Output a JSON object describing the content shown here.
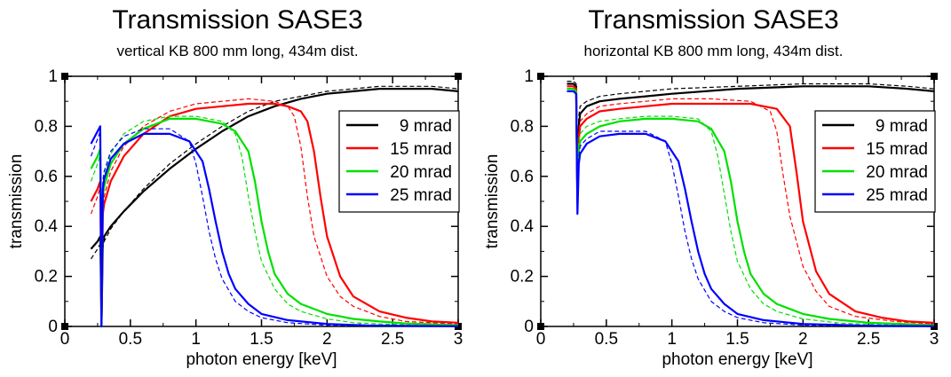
{
  "chart_data": [
    {
      "type": "line",
      "title": "Transmission SASE3",
      "subtitle": "vertical KB 800 mm long, 434m dist.",
      "xlabel": "photon energy [keV]",
      "ylabel": "transmission",
      "xlim": [
        0,
        3
      ],
      "ylim": [
        0,
        1
      ],
      "xticks": [
        "0",
        "0.5",
        "1",
        "1.5",
        "2",
        "2.5",
        "3"
      ],
      "yticks": [
        "0",
        "0.2",
        "0.4",
        "0.6",
        "0.8",
        "1"
      ],
      "grid": false,
      "legend_position": "top-right",
      "series": [
        {
          "name": "9 mrad",
          "color": "#000000",
          "solid": {
            "x": [
              0.2,
              0.25,
              0.27,
              0.28,
              0.29,
              0.3,
              0.35,
              0.45,
              0.6,
              0.8,
              1.0,
              1.2,
              1.4,
              1.6,
              1.8,
              2.0,
              2.2,
              2.4,
              2.6,
              2.8,
              3.0
            ],
            "y": [
              0.31,
              0.34,
              0.36,
              0.0,
              0.33,
              0.36,
              0.4,
              0.46,
              0.54,
              0.63,
              0.71,
              0.78,
              0.84,
              0.88,
              0.91,
              0.93,
              0.94,
              0.95,
              0.95,
              0.95,
              0.94
            ]
          },
          "dashed": {
            "x": [
              0.2,
              0.25,
              0.27,
              0.28,
              0.29,
              0.3,
              0.35,
              0.45,
              0.6,
              0.8,
              1.0,
              1.2,
              1.4,
              1.6,
              1.8,
              2.0,
              2.2,
              2.4,
              2.6,
              2.8,
              3.0
            ],
            "y": [
              0.27,
              0.31,
              0.33,
              0.0,
              0.31,
              0.34,
              0.39,
              0.46,
              0.55,
              0.65,
              0.73,
              0.8,
              0.86,
              0.9,
              0.92,
              0.94,
              0.95,
              0.96,
              0.96,
              0.96,
              0.95
            ]
          }
        },
        {
          "name": "15 mrad",
          "color": "#ff0000",
          "solid": {
            "x": [
              0.2,
              0.25,
              0.27,
              0.28,
              0.29,
              0.3,
              0.35,
              0.45,
              0.6,
              0.8,
              1.0,
              1.2,
              1.4,
              1.6,
              1.7,
              1.8,
              1.85,
              1.9,
              1.95,
              2.0,
              2.1,
              2.2,
              2.4,
              2.6,
              2.8,
              3.0
            ],
            "y": [
              0.5,
              0.55,
              0.58,
              0.0,
              0.45,
              0.49,
              0.58,
              0.68,
              0.77,
              0.84,
              0.87,
              0.88,
              0.89,
              0.89,
              0.88,
              0.86,
              0.82,
              0.7,
              0.52,
              0.36,
              0.2,
              0.12,
              0.06,
              0.035,
              0.02,
              0.015
            ]
          },
          "dashed": {
            "x": [
              0.2,
              0.25,
              0.27,
              0.28,
              0.29,
              0.3,
              0.35,
              0.45,
              0.6,
              0.8,
              1.0,
              1.2,
              1.4,
              1.6,
              1.7,
              1.75,
              1.8,
              1.85,
              1.9,
              2.0,
              2.1,
              2.2,
              2.4,
              2.6,
              2.8,
              3.0
            ],
            "y": [
              0.45,
              0.52,
              0.56,
              0.0,
              0.47,
              0.52,
              0.62,
              0.72,
              0.8,
              0.86,
              0.89,
              0.9,
              0.91,
              0.9,
              0.88,
              0.84,
              0.72,
              0.52,
              0.36,
              0.2,
              0.12,
              0.08,
              0.04,
              0.02,
              0.015,
              0.01
            ]
          }
        },
        {
          "name": "20 mrad",
          "color": "#00e000",
          "solid": {
            "x": [
              0.2,
              0.25,
              0.27,
              0.28,
              0.29,
              0.3,
              0.35,
              0.45,
              0.6,
              0.8,
              1.0,
              1.2,
              1.3,
              1.4,
              1.45,
              1.5,
              1.55,
              1.6,
              1.7,
              1.8,
              2.0,
              2.2,
              2.4,
              2.6,
              3.0
            ],
            "y": [
              0.63,
              0.68,
              0.71,
              0.0,
              0.52,
              0.56,
              0.65,
              0.73,
              0.79,
              0.83,
              0.83,
              0.81,
              0.78,
              0.7,
              0.58,
              0.42,
              0.3,
              0.21,
              0.13,
              0.09,
              0.05,
              0.03,
              0.02,
              0.012,
              0.005
            ]
          },
          "dashed": {
            "x": [
              0.2,
              0.25,
              0.27,
              0.28,
              0.29,
              0.3,
              0.35,
              0.45,
              0.6,
              0.8,
              1.0,
              1.2,
              1.3,
              1.35,
              1.4,
              1.45,
              1.5,
              1.6,
              1.7,
              1.8,
              2.0,
              2.2,
              2.4,
              3.0
            ],
            "y": [
              0.58,
              0.65,
              0.69,
              0.0,
              0.55,
              0.6,
              0.69,
              0.77,
              0.82,
              0.84,
              0.84,
              0.82,
              0.77,
              0.68,
              0.52,
              0.38,
              0.26,
              0.15,
              0.09,
              0.06,
              0.03,
              0.015,
              0.01,
              0.003
            ]
          }
        },
        {
          "name": "25 mrad",
          "color": "#0000ff",
          "solid": {
            "x": [
              0.2,
              0.25,
              0.27,
              0.28,
              0.29,
              0.3,
              0.35,
              0.45,
              0.6,
              0.8,
              0.95,
              1.05,
              1.1,
              1.15,
              1.2,
              1.25,
              1.3,
              1.4,
              1.5,
              1.7,
              2.0,
              2.3,
              2.6,
              3.0
            ],
            "y": [
              0.73,
              0.78,
              0.8,
              0.0,
              0.55,
              0.59,
              0.67,
              0.73,
              0.77,
              0.77,
              0.74,
              0.66,
              0.55,
              0.42,
              0.3,
              0.21,
              0.15,
              0.09,
              0.05,
              0.025,
              0.01,
              0.004,
              0.002,
              0.001
            ]
          },
          "dashed": {
            "x": [
              0.2,
              0.25,
              0.27,
              0.28,
              0.29,
              0.3,
              0.35,
              0.45,
              0.6,
              0.8,
              0.95,
              1.0,
              1.05,
              1.1,
              1.15,
              1.2,
              1.3,
              1.4,
              1.5,
              1.7,
              2.0,
              2.5,
              3.0
            ],
            "y": [
              0.68,
              0.75,
              0.78,
              0.0,
              0.58,
              0.62,
              0.7,
              0.76,
              0.79,
              0.79,
              0.74,
              0.65,
              0.52,
              0.38,
              0.27,
              0.19,
              0.1,
              0.06,
              0.035,
              0.015,
              0.005,
              0.002,
              0.001
            ]
          }
        }
      ]
    },
    {
      "type": "line",
      "title": "Transmission SASE3",
      "subtitle": "horizontal KB 800 mm long, 434m dist.",
      "xlabel": "photon energy [keV]",
      "ylabel": "transmission",
      "xlim": [
        0,
        3
      ],
      "ylim": [
        0,
        1
      ],
      "xticks": [
        "0",
        "0.5",
        "1",
        "1.5",
        "2",
        "2.5",
        "3"
      ],
      "yticks": [
        "0",
        "0.2",
        "0.4",
        "0.6",
        "0.8",
        "1"
      ],
      "grid": false,
      "legend_position": "top-right",
      "series": [
        {
          "name": "9 mrad",
          "color": "#000000",
          "solid": {
            "x": [
              0.2,
              0.25,
              0.27,
              0.28,
              0.29,
              0.3,
              0.35,
              0.45,
              0.6,
              0.8,
              1.0,
              1.5,
              2.0,
              2.5,
              2.8,
              3.0
            ],
            "y": [
              0.97,
              0.97,
              0.96,
              0.52,
              0.8,
              0.85,
              0.88,
              0.9,
              0.91,
              0.92,
              0.93,
              0.95,
              0.96,
              0.96,
              0.95,
              0.94
            ]
          },
          "dashed": {
            "x": [
              0.2,
              0.25,
              0.27,
              0.28,
              0.29,
              0.3,
              0.35,
              0.45,
              0.6,
              0.8,
              1.0,
              1.5,
              2.0,
              2.5,
              2.8,
              3.0
            ],
            "y": [
              0.98,
              0.98,
              0.97,
              0.6,
              0.84,
              0.88,
              0.9,
              0.92,
              0.93,
              0.94,
              0.95,
              0.96,
              0.97,
              0.97,
              0.96,
              0.95
            ]
          }
        },
        {
          "name": "15 mrad",
          "color": "#ff0000",
          "solid": {
            "x": [
              0.2,
              0.25,
              0.27,
              0.28,
              0.29,
              0.3,
              0.35,
              0.45,
              0.6,
              0.8,
              1.0,
              1.3,
              1.6,
              1.8,
              1.9,
              1.95,
              2.0,
              2.1,
              2.2,
              2.4,
              2.6,
              2.8,
              3.0
            ],
            "y": [
              0.96,
              0.96,
              0.95,
              0.5,
              0.75,
              0.8,
              0.83,
              0.86,
              0.87,
              0.88,
              0.89,
              0.89,
              0.89,
              0.87,
              0.8,
              0.62,
              0.42,
              0.22,
              0.13,
              0.06,
              0.035,
              0.02,
              0.015
            ]
          },
          "dashed": {
            "x": [
              0.2,
              0.25,
              0.27,
              0.28,
              0.29,
              0.3,
              0.35,
              0.45,
              0.6,
              0.8,
              1.0,
              1.3,
              1.6,
              1.75,
              1.8,
              1.85,
              1.9,
              2.0,
              2.1,
              2.2,
              2.4,
              2.7,
              3.0
            ],
            "y": [
              0.96,
              0.96,
              0.95,
              0.55,
              0.78,
              0.82,
              0.85,
              0.88,
              0.89,
              0.9,
              0.91,
              0.91,
              0.9,
              0.86,
              0.78,
              0.6,
              0.44,
              0.24,
              0.14,
              0.08,
              0.04,
              0.02,
              0.01
            ]
          }
        },
        {
          "name": "20 mrad",
          "color": "#00e000",
          "solid": {
            "x": [
              0.2,
              0.25,
              0.27,
              0.28,
              0.29,
              0.3,
              0.35,
              0.45,
              0.6,
              0.8,
              1.0,
              1.2,
              1.3,
              1.4,
              1.45,
              1.5,
              1.55,
              1.6,
              1.7,
              1.8,
              2.0,
              2.2,
              2.5,
              3.0
            ],
            "y": [
              0.95,
              0.95,
              0.94,
              0.5,
              0.7,
              0.74,
              0.77,
              0.8,
              0.82,
              0.83,
              0.83,
              0.82,
              0.79,
              0.7,
              0.58,
              0.42,
              0.3,
              0.21,
              0.13,
              0.09,
              0.05,
              0.03,
              0.015,
              0.005
            ]
          },
          "dashed": {
            "x": [
              0.2,
              0.25,
              0.27,
              0.28,
              0.29,
              0.3,
              0.35,
              0.45,
              0.6,
              0.8,
              1.0,
              1.2,
              1.3,
              1.35,
              1.4,
              1.45,
              1.5,
              1.6,
              1.7,
              1.8,
              2.0,
              2.3,
              3.0
            ],
            "y": [
              0.95,
              0.95,
              0.94,
              0.55,
              0.73,
              0.77,
              0.8,
              0.82,
              0.83,
              0.84,
              0.84,
              0.83,
              0.78,
              0.68,
              0.53,
              0.38,
              0.26,
              0.15,
              0.09,
              0.06,
              0.03,
              0.012,
              0.003
            ]
          }
        },
        {
          "name": "25 mrad",
          "color": "#0000ff",
          "solid": {
            "x": [
              0.2,
              0.25,
              0.27,
              0.28,
              0.29,
              0.3,
              0.35,
              0.45,
              0.6,
              0.8,
              0.95,
              1.05,
              1.1,
              1.15,
              1.2,
              1.25,
              1.3,
              1.4,
              1.5,
              1.7,
              2.0,
              2.5,
              3.0
            ],
            "y": [
              0.94,
              0.94,
              0.93,
              0.45,
              0.65,
              0.69,
              0.73,
              0.76,
              0.77,
              0.77,
              0.74,
              0.66,
              0.55,
              0.42,
              0.3,
              0.21,
              0.15,
              0.09,
              0.05,
              0.025,
              0.01,
              0.003,
              0.001
            ]
          },
          "dashed": {
            "x": [
              0.2,
              0.25,
              0.27,
              0.28,
              0.29,
              0.3,
              0.35,
              0.45,
              0.6,
              0.8,
              0.95,
              1.0,
              1.05,
              1.1,
              1.15,
              1.2,
              1.3,
              1.4,
              1.5,
              1.7,
              2.0,
              2.5,
              3.0
            ],
            "y": [
              0.94,
              0.94,
              0.93,
              0.5,
              0.68,
              0.72,
              0.75,
              0.78,
              0.78,
              0.78,
              0.74,
              0.65,
              0.52,
              0.38,
              0.27,
              0.19,
              0.1,
              0.06,
              0.035,
              0.015,
              0.005,
              0.002,
              0.001
            ]
          }
        }
      ]
    }
  ]
}
